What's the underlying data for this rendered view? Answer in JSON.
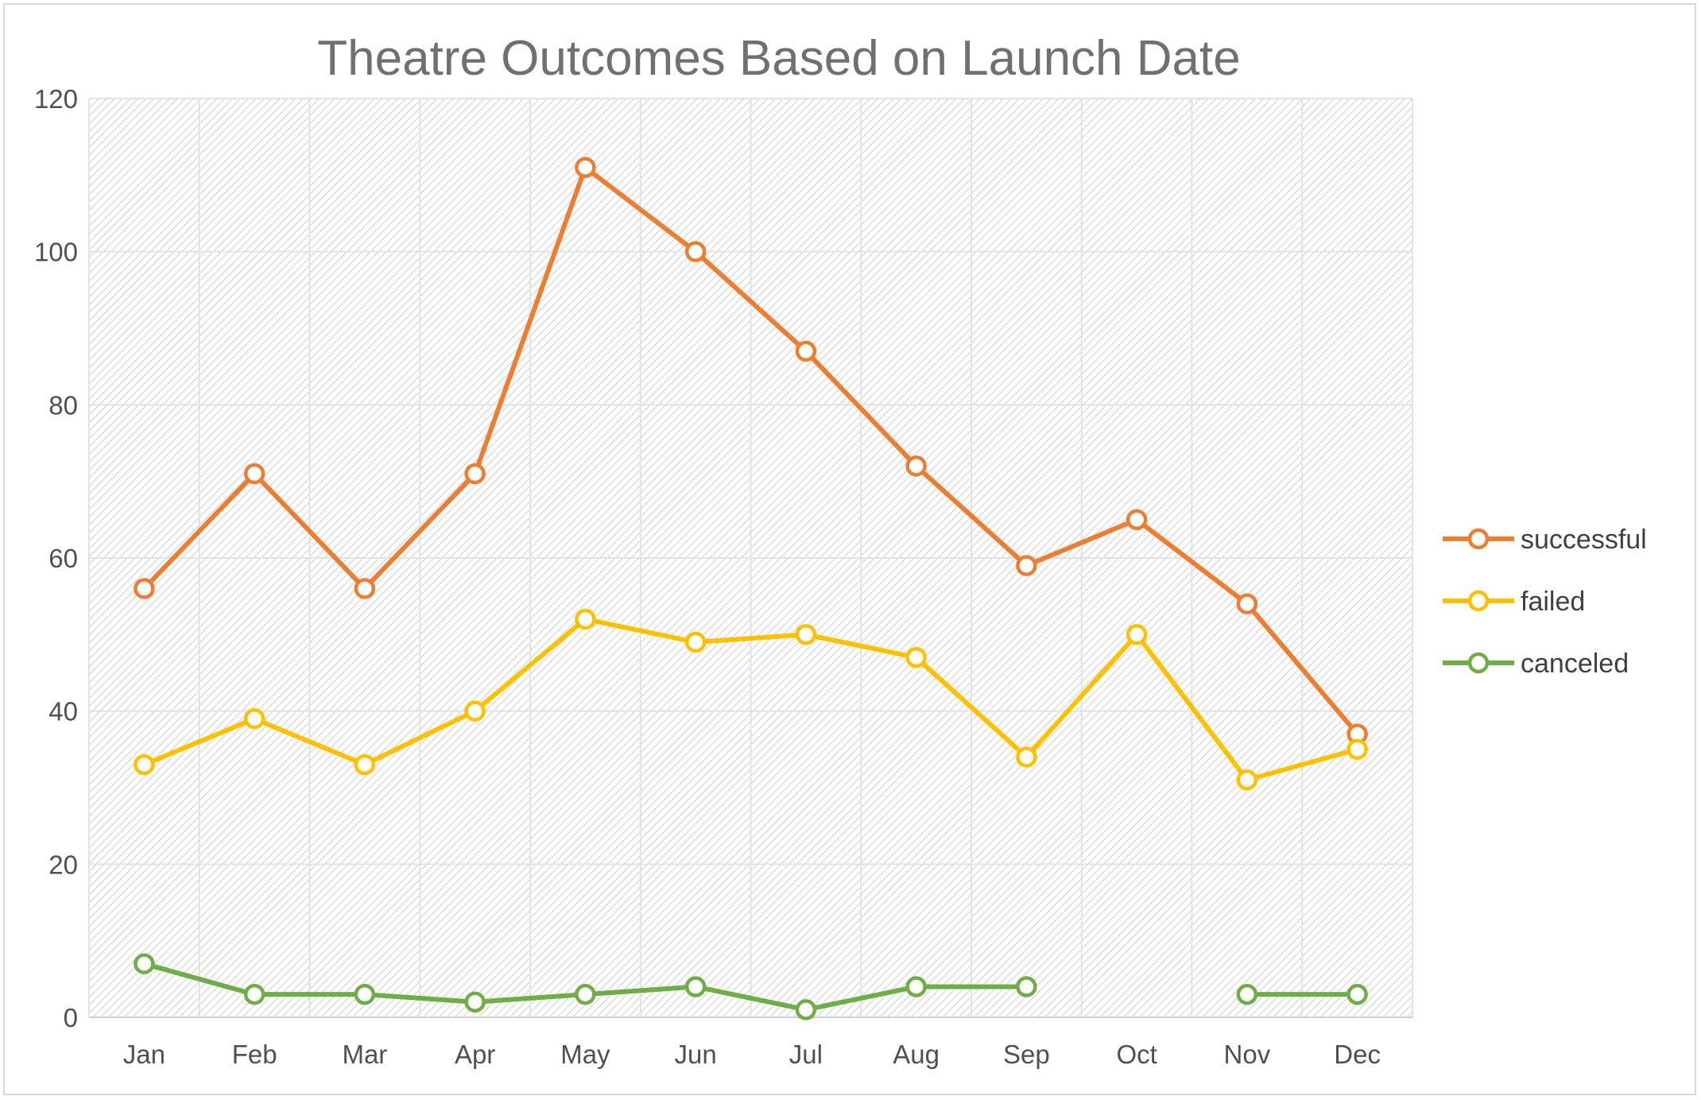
{
  "chart_data": {
    "type": "line",
    "title": "Theatre Outcomes Based on Launch Date",
    "categories": [
      "Jan",
      "Feb",
      "Mar",
      "Apr",
      "May",
      "Jun",
      "Jul",
      "Aug",
      "Sep",
      "Oct",
      "Nov",
      "Dec"
    ],
    "series": [
      {
        "name": "successful",
        "color": "#ed7d31",
        "values": [
          56,
          71,
          56,
          71,
          111,
          100,
          87,
          72,
          59,
          65,
          54,
          37
        ]
      },
      {
        "name": "failed",
        "color": "#ffc000",
        "values": [
          33,
          39,
          33,
          40,
          52,
          49,
          50,
          47,
          34,
          50,
          31,
          35
        ]
      },
      {
        "name": "canceled",
        "color": "#70ad47",
        "values": [
          7,
          3,
          3,
          2,
          3,
          4,
          1,
          4,
          4,
          null,
          3,
          3
        ]
      }
    ],
    "ylim": [
      0,
      120
    ],
    "yticks": [
      0,
      20,
      40,
      60,
      80,
      100,
      120
    ],
    "grid": true,
    "legend": "right",
    "xlabel": "",
    "ylabel": ""
  }
}
